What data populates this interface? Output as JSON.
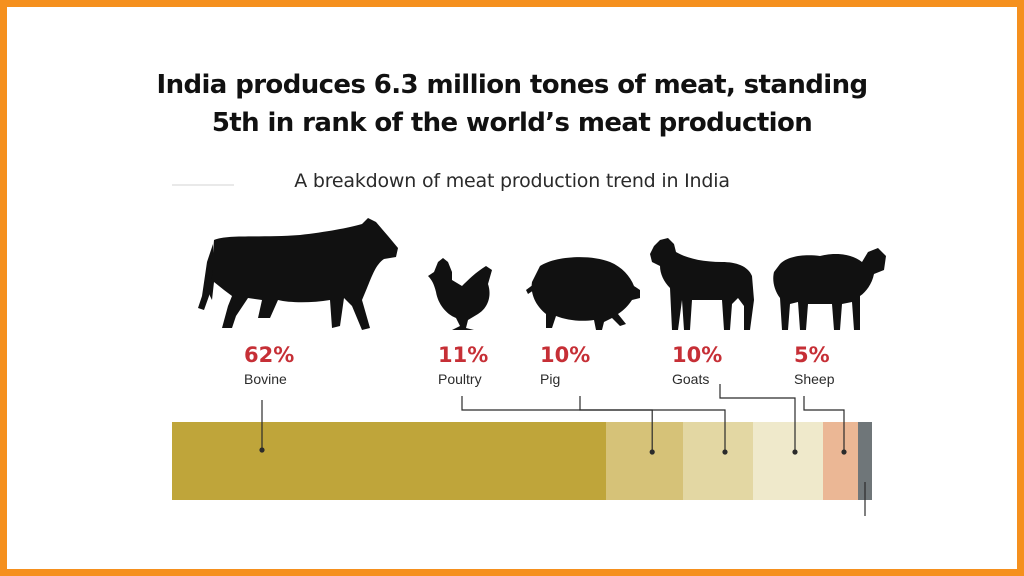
{
  "page": {
    "title_lines": [
      "India produces 6.3 million tones of meat, standing",
      "5th in rank of the world’s meat production"
    ],
    "subtitle": "A breakdown of meat production trend in India"
  },
  "icons": [
    "cow-icon",
    "chicken-icon",
    "pig-icon",
    "goat-icon",
    "sheep-icon"
  ],
  "chart_data": {
    "type": "bar",
    "orientation": "horizontal-stacked",
    "title": "India produces 6.3 million tones of meat, standing 5th in rank of the world’s meat production",
    "subtitle": "A breakdown of meat production trend in India",
    "unit": "%",
    "segments": [
      {
        "name": "Bovine",
        "value": 62,
        "label": "62%",
        "color": "#bfa53a"
      },
      {
        "name": "Poultry",
        "value": 11,
        "label": "11%",
        "color": "#d6c278"
      },
      {
        "name": "Pig",
        "value": 10,
        "label": "10%",
        "color": "#e3d7a3"
      },
      {
        "name": "Goats",
        "value": 10,
        "label": "10%",
        "color": "#efe9cb"
      },
      {
        "name": "Sheep",
        "value": 5,
        "label": "5%",
        "color": "#ebb795"
      },
      {
        "name": "",
        "value": 2,
        "label": "",
        "color": "#6f7679"
      }
    ]
  }
}
